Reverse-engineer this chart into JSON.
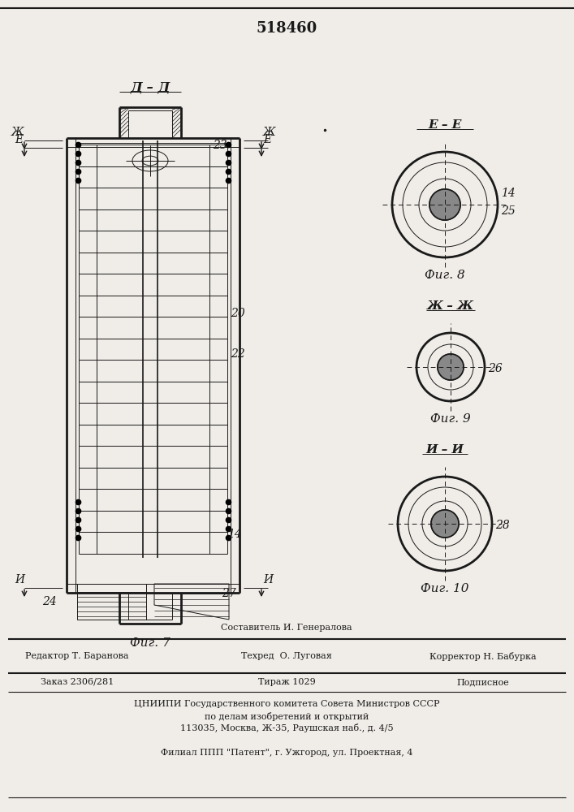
{
  "title": "518460",
  "fig7_label": "Фиг. 7",
  "fig8_label": "Фиг. 8",
  "fig9_label": "Фиг. 9",
  "fig10_label": "Фиг. 10",
  "section_dd": "Д – Д",
  "section_ee": "Е – Е",
  "section_zhzh": "Ж – Ж",
  "section_ii": "И – И",
  "bg_color": "#f0ede8",
  "line_color": "#1a1a1a",
  "footer_line1_above": "Составитель И. Генералова",
  "footer_line1_left": "Редактор Т. Баранова",
  "footer_line1_center": "Техред  О. Луговая",
  "footer_line1_right": "Корректор Н. Бабурка",
  "footer_line2_left": "Заказ 2306/281",
  "footer_line2_center": "Тираж 1029",
  "footer_line2_right": "Подписное",
  "footer_line3": "ЦНИИПИ Государственного комитета Совета Министров СССР",
  "footer_line4": "по делам изобретений и открытий",
  "footer_line5": "113035, Москва, Ж-35, Раушская наб., д. 4/5",
  "footer_line6": "Филиал ППП \"Патент\", г. Ужгород, ул. Проектная, 4"
}
